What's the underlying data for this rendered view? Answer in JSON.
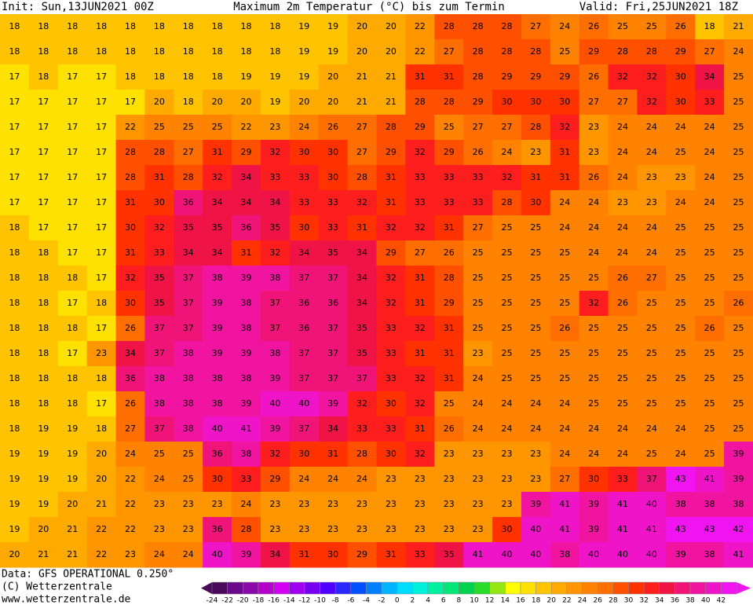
{
  "header": {
    "init": "Init: Sun,13JUN2021 00Z",
    "title": "Maximum 2m Temperatur (°C) bis zum Termin",
    "valid": "Valid: Fri,25JUN2021 18Z"
  },
  "map": {
    "type": "heatmap",
    "values": [
      [
        18,
        18,
        18,
        18,
        18,
        18,
        18,
        18,
        18,
        18,
        19,
        19,
        20,
        20,
        22,
        28,
        28,
        28,
        27,
        24,
        26,
        25,
        25,
        26,
        18,
        21
      ],
      [
        18,
        18,
        18,
        18,
        18,
        18,
        18,
        18,
        18,
        18,
        19,
        19,
        20,
        20,
        22,
        27,
        28,
        28,
        28,
        25,
        29,
        28,
        28,
        29,
        27,
        24
      ],
      [
        17,
        18,
        17,
        17,
        18,
        18,
        18,
        18,
        19,
        19,
        19,
        20,
        21,
        21,
        31,
        31,
        28,
        29,
        29,
        29,
        26,
        32,
        32,
        30,
        34,
        25
      ],
      [
        17,
        17,
        17,
        17,
        17,
        20,
        18,
        20,
        20,
        19,
        20,
        20,
        21,
        21,
        28,
        28,
        29,
        30,
        30,
        30,
        27,
        27,
        32,
        30,
        33,
        25
      ],
      [
        17,
        17,
        17,
        17,
        22,
        25,
        25,
        25,
        22,
        23,
        24,
        26,
        27,
        28,
        29,
        25,
        27,
        27,
        28,
        32,
        23,
        24,
        24,
        24,
        24,
        25
      ],
      [
        17,
        17,
        17,
        17,
        28,
        28,
        27,
        31,
        29,
        32,
        30,
        30,
        27,
        29,
        32,
        29,
        26,
        24,
        23,
        31,
        23,
        24,
        24,
        25,
        24,
        25
      ],
      [
        17,
        17,
        17,
        17,
        28,
        31,
        28,
        32,
        34,
        33,
        33,
        30,
        28,
        31,
        33,
        33,
        33,
        32,
        31,
        31,
        26,
        24,
        23,
        23,
        24,
        25
      ],
      [
        17,
        17,
        17,
        17,
        31,
        30,
        36,
        34,
        34,
        34,
        33,
        33,
        32,
        31,
        33,
        33,
        33,
        28,
        30,
        24,
        24,
        23,
        23,
        24,
        24,
        25
      ],
      [
        18,
        17,
        17,
        17,
        30,
        32,
        35,
        35,
        36,
        35,
        30,
        33,
        31,
        32,
        32,
        31,
        27,
        25,
        25,
        24,
        24,
        24,
        24,
        25,
        25,
        25
      ],
      [
        18,
        18,
        17,
        17,
        31,
        33,
        34,
        34,
        31,
        32,
        34,
        35,
        34,
        29,
        27,
        26,
        25,
        25,
        25,
        25,
        24,
        24,
        24,
        25,
        25,
        25
      ],
      [
        18,
        18,
        18,
        17,
        32,
        35,
        37,
        38,
        39,
        38,
        37,
        37,
        34,
        32,
        31,
        28,
        25,
        25,
        25,
        25,
        25,
        26,
        27,
        25,
        25,
        25
      ],
      [
        18,
        18,
        17,
        18,
        30,
        35,
        37,
        39,
        38,
        37,
        36,
        36,
        34,
        32,
        31,
        29,
        25,
        25,
        25,
        25,
        32,
        26,
        25,
        25,
        25,
        26
      ],
      [
        18,
        18,
        18,
        17,
        26,
        37,
        37,
        39,
        38,
        37,
        36,
        37,
        35,
        33,
        32,
        31,
        25,
        25,
        25,
        26,
        25,
        25,
        25,
        25,
        26,
        25
      ],
      [
        18,
        18,
        17,
        23,
        34,
        37,
        38,
        39,
        39,
        38,
        37,
        37,
        35,
        33,
        31,
        31,
        23,
        25,
        25,
        25,
        25,
        25,
        25,
        25,
        25,
        25
      ],
      [
        18,
        18,
        18,
        18,
        36,
        38,
        38,
        38,
        38,
        39,
        37,
        37,
        37,
        33,
        32,
        31,
        24,
        25,
        25,
        25,
        25,
        25,
        25,
        25,
        25,
        25
      ],
      [
        18,
        18,
        18,
        17,
        26,
        38,
        38,
        38,
        39,
        40,
        40,
        39,
        32,
        30,
        32,
        25,
        24,
        24,
        24,
        24,
        25,
        25,
        25,
        25,
        25,
        25
      ],
      [
        18,
        19,
        19,
        18,
        27,
        37,
        38,
        40,
        41,
        39,
        37,
        34,
        33,
        33,
        31,
        26,
        24,
        24,
        24,
        24,
        24,
        24,
        24,
        24,
        25,
        25
      ],
      [
        19,
        19,
        19,
        20,
        24,
        25,
        25,
        36,
        38,
        32,
        30,
        31,
        28,
        30,
        32,
        23,
        23,
        23,
        23,
        24,
        24,
        24,
        25,
        24,
        25,
        39
      ],
      [
        19,
        19,
        19,
        20,
        22,
        24,
        25,
        30,
        33,
        29,
        24,
        24,
        24,
        23,
        23,
        23,
        23,
        23,
        23,
        27,
        30,
        33,
        37,
        43,
        41,
        39
      ],
      [
        19,
        19,
        20,
        21,
        22,
        23,
        23,
        23,
        24,
        23,
        23,
        23,
        23,
        23,
        23,
        23,
        23,
        23,
        39,
        41,
        39,
        41,
        40,
        38,
        38,
        38
      ],
      [
        19,
        20,
        21,
        22,
        22,
        23,
        23,
        36,
        28,
        23,
        23,
        23,
        23,
        23,
        23,
        23,
        23,
        30,
        40,
        41,
        39,
        41,
        41,
        43,
        43,
        42
      ],
      [
        20,
        21,
        21,
        22,
        23,
        24,
        24,
        40,
        39,
        34,
        31,
        30,
        29,
        31,
        33,
        35,
        41,
        40,
        40,
        38,
        40,
        40,
        40,
        39,
        38,
        41
      ]
    ]
  },
  "colorbar": {
    "ticks": [
      -24,
      -22,
      -20,
      -18,
      -16,
      -14,
      -12,
      -10,
      -8,
      -6,
      -4,
      -2,
      0,
      2,
      4,
      6,
      8,
      10,
      12,
      14,
      16,
      18,
      20,
      22,
      24,
      26,
      28,
      30,
      32,
      34,
      36,
      38,
      40,
      42
    ],
    "colors": [
      "#4a0a5a",
      "#6a0a8a",
      "#8c0aa8",
      "#b400c8",
      "#d200f0",
      "#a000f0",
      "#7800f0",
      "#5000ff",
      "#2828ff",
      "#0050ff",
      "#0080ff",
      "#00b4ff",
      "#00dcff",
      "#00f0dc",
      "#00f0a0",
      "#00e678",
      "#00d250",
      "#28dc28",
      "#96e614",
      "#ffff00",
      "#ffe100",
      "#ffc300",
      "#ffaa00",
      "#ff9600",
      "#ff8200",
      "#ff6e00",
      "#ff5000",
      "#ff3200",
      "#ff1e1e",
      "#f01446",
      "#f01478",
      "#f014a0",
      "#f014c8",
      "#f014f0"
    ]
  },
  "footer": {
    "data": "Data: GFS OPERATIONAL 0.250°",
    "copyright": "(C) Wetterzentrale",
    "url": "www.wetterzentrale.de"
  }
}
